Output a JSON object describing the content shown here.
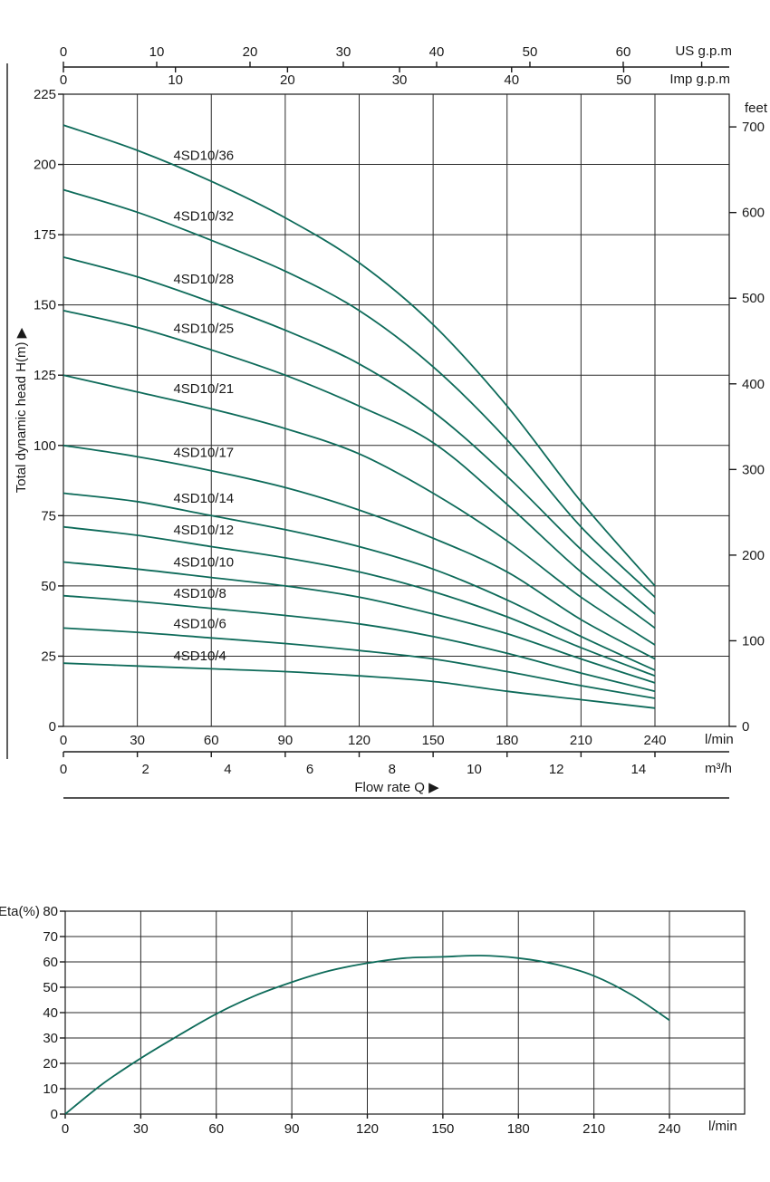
{
  "head_chart": {
    "type": "line",
    "ylabel": "Total dynamic head H(m)",
    "xlabel": "Flow  rate Q",
    "x_unit_lmin": "l/min",
    "x_unit_m3h": "m³/h",
    "us_gpm_unit": "US g.p.m",
    "imp_gpm_unit": "Imp g.p.m",
    "feet_unit": "feet",
    "x_ticks_lmin": [
      "0",
      "30",
      "60",
      "90",
      "120",
      "150",
      "180",
      "210",
      "240"
    ],
    "x_ticks_m3h": [
      "0",
      "2",
      "4",
      "6",
      "8",
      "10",
      "12",
      "14"
    ],
    "us_gpm_ticks": [
      "0",
      "10",
      "20",
      "30",
      "40",
      "50",
      "60"
    ],
    "imp_gpm_ticks": [
      "0",
      "10",
      "20",
      "30",
      "40",
      "50"
    ],
    "y_ticks": [
      "0",
      "25",
      "50",
      "75",
      "100",
      "125",
      "150",
      "175",
      "200",
      "225"
    ],
    "feet_ticks": [
      "0",
      "100",
      "200",
      "300",
      "400",
      "500",
      "600",
      "700"
    ],
    "xlim": [
      0,
      240
    ],
    "ylim": [
      0,
      225
    ]
  },
  "chart_data": [
    {
      "type": "line",
      "x": [
        0,
        30,
        60,
        90,
        120,
        150,
        180,
        210,
        240
      ],
      "xlim": [
        0,
        240
      ],
      "ylim": [
        0,
        225
      ],
      "xlabel": "Flow  rate Q",
      "ylabel": "Total dynamic head H(m)",
      "series": [
        {
          "name": "4SD10/36",
          "values": [
            214,
            205,
            194,
            181,
            165,
            143,
            114,
            80,
            50
          ]
        },
        {
          "name": "4SD10/32",
          "values": [
            191,
            183,
            173,
            162,
            148,
            128,
            102,
            71,
            46
          ]
        },
        {
          "name": "4SD10/28",
          "values": [
            167,
            160,
            151,
            141,
            129,
            112,
            89,
            63,
            40
          ]
        },
        {
          "name": "4SD10/25",
          "values": [
            148,
            142,
            134,
            125,
            114,
            101,
            79,
            55,
            35
          ]
        },
        {
          "name": "4SD10/21",
          "values": [
            125,
            119,
            113,
            106,
            97,
            83,
            66,
            46,
            29
          ]
        },
        {
          "name": "4SD10/17",
          "values": [
            100,
            96,
            91,
            85,
            77,
            67,
            55,
            38,
            24
          ]
        },
        {
          "name": "4SD10/14",
          "values": [
            83,
            80,
            75,
            70,
            64,
            56,
            45,
            32,
            20
          ]
        },
        {
          "name": "4SD10/12",
          "values": [
            71,
            68,
            64,
            60,
            55,
            48,
            39,
            28,
            18
          ]
        },
        {
          "name": "4SD10/10",
          "values": [
            58.5,
            56,
            53,
            50,
            46,
            40,
            33,
            24,
            15.5
          ]
        },
        {
          "name": "4SD10/8",
          "values": [
            46.5,
            44.5,
            42,
            39.5,
            36.5,
            32,
            26,
            19,
            12.5
          ]
        },
        {
          "name": "4SD10/6",
          "values": [
            35,
            33.5,
            31.5,
            29.5,
            27,
            24,
            19.5,
            14.5,
            10
          ]
        },
        {
          "name": "4SD10/4",
          "values": [
            22.5,
            21.5,
            20.5,
            19.5,
            18,
            16,
            12.5,
            9.5,
            6.5
          ]
        }
      ]
    },
    {
      "type": "line",
      "x": [
        0,
        15,
        30,
        45,
        60,
        75,
        90,
        105,
        120,
        135,
        150,
        165,
        180,
        195,
        210,
        225,
        240
      ],
      "xlim": [
        0,
        240
      ],
      "ylim": [
        0,
        80
      ],
      "xlabel": "l/min",
      "ylabel": "Eta(%)",
      "x_ticks": [
        "0",
        "30",
        "60",
        "90",
        "120",
        "150",
        "180",
        "210",
        "240"
      ],
      "y_ticks": [
        "0",
        "10",
        "20",
        "30",
        "40",
        "50",
        "60",
        "70",
        "80"
      ],
      "series": [
        {
          "values": [
            0,
            12,
            22,
            31,
            39.5,
            46.5,
            52,
            56.5,
            59.5,
            61.5,
            62,
            62.5,
            61.5,
            59,
            54.5,
            47,
            37
          ]
        }
      ]
    }
  ]
}
